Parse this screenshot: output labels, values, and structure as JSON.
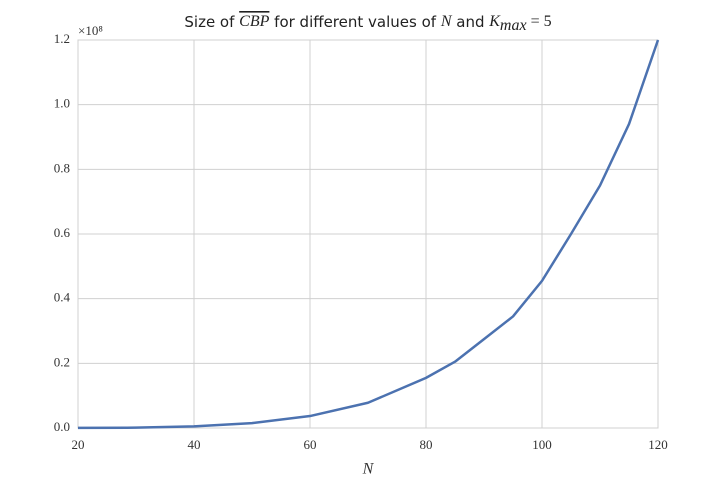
{
  "chart_data": {
    "type": "line",
    "title_parts": [
      "Size of ",
      "CBP",
      " for different values of ",
      "N",
      " and ",
      "K",
      "max",
      " = 5"
    ],
    "x_label": "N",
    "y_offset_label": "×10⁸",
    "x": [
      20,
      30,
      40,
      50,
      60,
      70,
      80,
      85,
      90,
      95,
      100,
      105,
      110,
      115,
      120
    ],
    "series": [
      {
        "color": "#4c72b0",
        "values": [
          0.0003,
          0.001,
          0.005,
          0.015,
          0.037,
          0.078,
          0.155,
          0.205,
          0.275,
          0.345,
          0.455,
          0.6,
          0.75,
          0.94,
          1.2
        ]
      }
    ],
    "xlim": [
      20,
      120
    ],
    "xticks": [
      20,
      40,
      60,
      80,
      100,
      120
    ],
    "ylim": [
      0,
      1.2
    ],
    "yticks": [
      {
        "value": 0,
        "label": "0.0"
      },
      0.2,
      0.4,
      0.6,
      0.8,
      {
        "value": 1,
        "label": "1.0"
      },
      1.2
    ],
    "grid": true
  }
}
